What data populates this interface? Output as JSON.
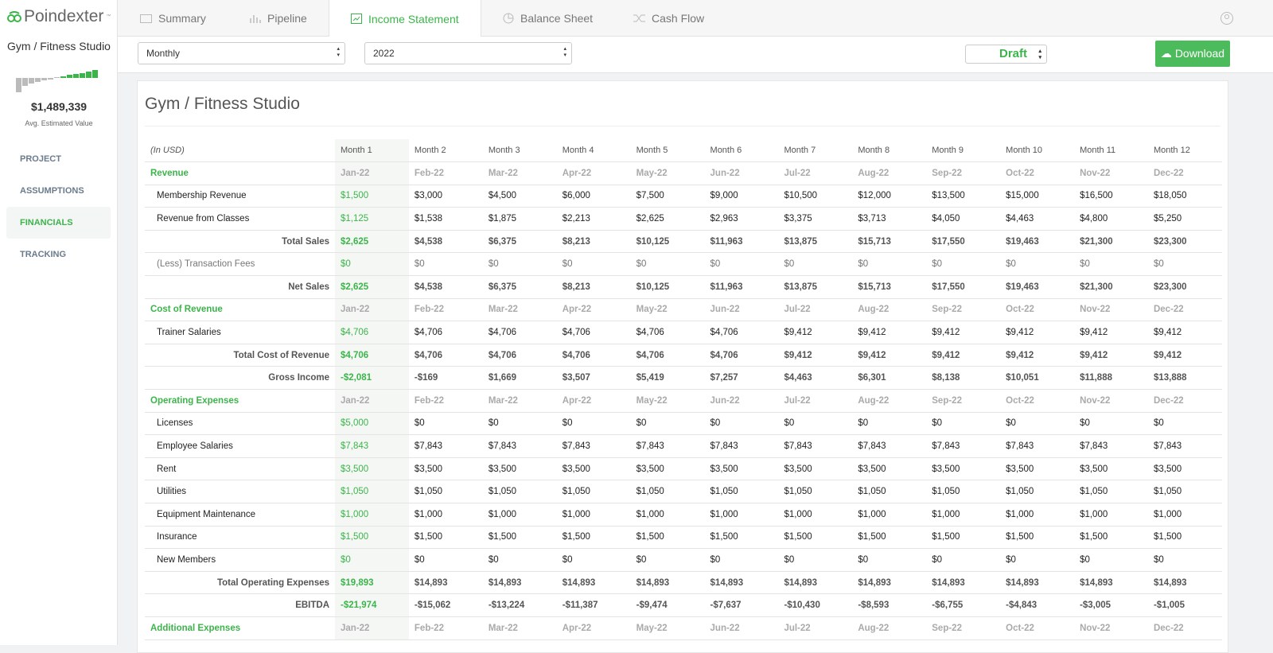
{
  "brand": {
    "name": "Poindexter",
    "mark": "™"
  },
  "project": {
    "name": "Gym / Fitness Studio",
    "value": "$1,489,339",
    "value_label": "Avg. Estimated Value"
  },
  "nav": [
    "PROJECT",
    "ASSUMPTIONS",
    "FINANCIALS",
    "TRACKING"
  ],
  "tabs": [
    "Summary",
    "Pipeline",
    "Income Statement",
    "Balance Sheet",
    "Cash Flow"
  ],
  "toolbar": {
    "period": "Monthly",
    "year": "2022",
    "status": "Draft",
    "download": "Download"
  },
  "table": {
    "unit": "(In USD)",
    "columns": [
      "Month 1",
      "Month 2",
      "Month 3",
      "Month 4",
      "Month 5",
      "Month 6",
      "Month 7",
      "Month 8",
      "Month 9",
      "Month 10",
      "Month 11",
      "Month 12"
    ],
    "months": [
      "Jan-22",
      "Feb-22",
      "Mar-22",
      "Apr-22",
      "May-22",
      "Jun-22",
      "Jul-22",
      "Aug-22",
      "Sep-22",
      "Oct-22",
      "Nov-22",
      "Dec-22"
    ],
    "rows": [
      {
        "kind": "section",
        "label": "Revenue"
      },
      {
        "kind": "item",
        "label": "Membership Revenue",
        "values": [
          "$1,500",
          "$3,000",
          "$4,500",
          "$6,000",
          "$7,500",
          "$9,000",
          "$10,500",
          "$12,000",
          "$13,500",
          "$15,000",
          "$16,500",
          "$18,050"
        ]
      },
      {
        "kind": "item",
        "label": "Revenue from Classes",
        "values": [
          "$1,125",
          "$1,538",
          "$1,875",
          "$2,213",
          "$2,625",
          "$2,963",
          "$3,375",
          "$3,713",
          "$4,050",
          "$4,463",
          "$4,800",
          "$5,250"
        ]
      },
      {
        "kind": "total",
        "label": "Total Sales",
        "values": [
          "$2,625",
          "$4,538",
          "$6,375",
          "$8,213",
          "$10,125",
          "$11,963",
          "$13,875",
          "$15,713",
          "$17,550",
          "$19,463",
          "$21,300",
          "$23,300"
        ]
      },
      {
        "kind": "sub",
        "label": "(Less) Transaction Fees",
        "values": [
          "$0",
          "$0",
          "$0",
          "$0",
          "$0",
          "$0",
          "$0",
          "$0",
          "$0",
          "$0",
          "$0",
          "$0"
        ]
      },
      {
        "kind": "total",
        "label": "Net Sales",
        "values": [
          "$2,625",
          "$4,538",
          "$6,375",
          "$8,213",
          "$10,125",
          "$11,963",
          "$13,875",
          "$15,713",
          "$17,550",
          "$19,463",
          "$21,300",
          "$23,300"
        ]
      },
      {
        "kind": "section",
        "label": "Cost of Revenue"
      },
      {
        "kind": "item",
        "label": "Trainer Salaries",
        "values": [
          "$4,706",
          "$4,706",
          "$4,706",
          "$4,706",
          "$4,706",
          "$4,706",
          "$9,412",
          "$9,412",
          "$9,412",
          "$9,412",
          "$9,412",
          "$9,412"
        ]
      },
      {
        "kind": "total",
        "label": "Total Cost of Revenue",
        "values": [
          "$4,706",
          "$4,706",
          "$4,706",
          "$4,706",
          "$4,706",
          "$4,706",
          "$9,412",
          "$9,412",
          "$9,412",
          "$9,412",
          "$9,412",
          "$9,412"
        ]
      },
      {
        "kind": "total",
        "label": "Gross Income",
        "values": [
          "-$2,081",
          "-$169",
          "$1,669",
          "$3,507",
          "$5,419",
          "$7,257",
          "$4,463",
          "$6,301",
          "$8,138",
          "$10,051",
          "$11,888",
          "$13,888"
        ]
      },
      {
        "kind": "section",
        "label": "Operating Expenses"
      },
      {
        "kind": "item",
        "label": "Licenses",
        "values": [
          "$5,000",
          "$0",
          "$0",
          "$0",
          "$0",
          "$0",
          "$0",
          "$0",
          "$0",
          "$0",
          "$0",
          "$0"
        ]
      },
      {
        "kind": "item",
        "label": "Employee Salaries",
        "values": [
          "$7,843",
          "$7,843",
          "$7,843",
          "$7,843",
          "$7,843",
          "$7,843",
          "$7,843",
          "$7,843",
          "$7,843",
          "$7,843",
          "$7,843",
          "$7,843"
        ]
      },
      {
        "kind": "item",
        "label": "Rent",
        "values": [
          "$3,500",
          "$3,500",
          "$3,500",
          "$3,500",
          "$3,500",
          "$3,500",
          "$3,500",
          "$3,500",
          "$3,500",
          "$3,500",
          "$3,500",
          "$3,500"
        ]
      },
      {
        "kind": "item",
        "label": "Utilities",
        "values": [
          "$1,050",
          "$1,050",
          "$1,050",
          "$1,050",
          "$1,050",
          "$1,050",
          "$1,050",
          "$1,050",
          "$1,050",
          "$1,050",
          "$1,050",
          "$1,050"
        ]
      },
      {
        "kind": "item",
        "label": "Equipment Maintenance",
        "values": [
          "$1,000",
          "$1,000",
          "$1,000",
          "$1,000",
          "$1,000",
          "$1,000",
          "$1,000",
          "$1,000",
          "$1,000",
          "$1,000",
          "$1,000",
          "$1,000"
        ]
      },
      {
        "kind": "item",
        "label": "Insurance",
        "values": [
          "$1,500",
          "$1,500",
          "$1,500",
          "$1,500",
          "$1,500",
          "$1,500",
          "$1,500",
          "$1,500",
          "$1,500",
          "$1,500",
          "$1,500",
          "$1,500"
        ]
      },
      {
        "kind": "item",
        "label": "New Members",
        "values": [
          "$0",
          "$0",
          "$0",
          "$0",
          "$0",
          "$0",
          "$0",
          "$0",
          "$0",
          "$0",
          "$0",
          "$0"
        ]
      },
      {
        "kind": "total",
        "label": "Total Operating Expenses",
        "values": [
          "$19,893",
          "$14,893",
          "$14,893",
          "$14,893",
          "$14,893",
          "$14,893",
          "$14,893",
          "$14,893",
          "$14,893",
          "$14,893",
          "$14,893",
          "$14,893"
        ]
      },
      {
        "kind": "total",
        "label": "EBITDA",
        "values": [
          "-$21,974",
          "-$15,062",
          "-$13,224",
          "-$11,387",
          "-$9,474",
          "-$7,637",
          "-$10,430",
          "-$8,593",
          "-$6,755",
          "-$4,843",
          "-$3,005",
          "-$1,005"
        ]
      },
      {
        "kind": "section",
        "label": "Additional Expenses"
      }
    ]
  }
}
